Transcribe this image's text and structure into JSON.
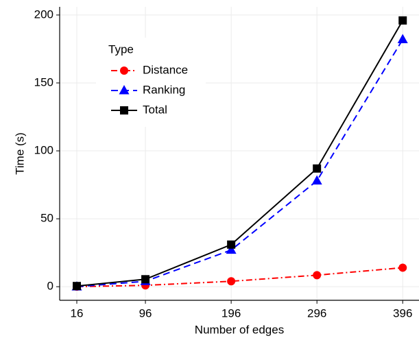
{
  "chart_data": {
    "type": "line",
    "x_label": "Number of edges",
    "y_label": "Time (s)",
    "x": [
      16,
      96,
      196,
      296,
      396
    ],
    "series": [
      {
        "name": "Distance",
        "color": "#ff0000",
        "dash": "dashdot",
        "marker": "circle",
        "values": [
          0,
          1,
          4,
          8.5,
          14
        ]
      },
      {
        "name": "Ranking",
        "color": "#0000ff",
        "dash": "dashed",
        "marker": "triangle",
        "values": [
          0,
          4,
          27,
          78,
          182
        ]
      },
      {
        "name": "Total",
        "color": "#000000",
        "dash": "solid",
        "marker": "square",
        "values": [
          0.5,
          5.5,
          31,
          87,
          196
        ]
      }
    ],
    "legend_title": "Type",
    "legend_position": "top-left",
    "xlim": [
      -4,
      415
    ],
    "xticks": [
      16,
      96,
      196,
      296,
      396
    ],
    "ylim": [
      -10,
      206
    ],
    "yticks": [
      0,
      50,
      100,
      150,
      200
    ],
    "grid": true
  }
}
